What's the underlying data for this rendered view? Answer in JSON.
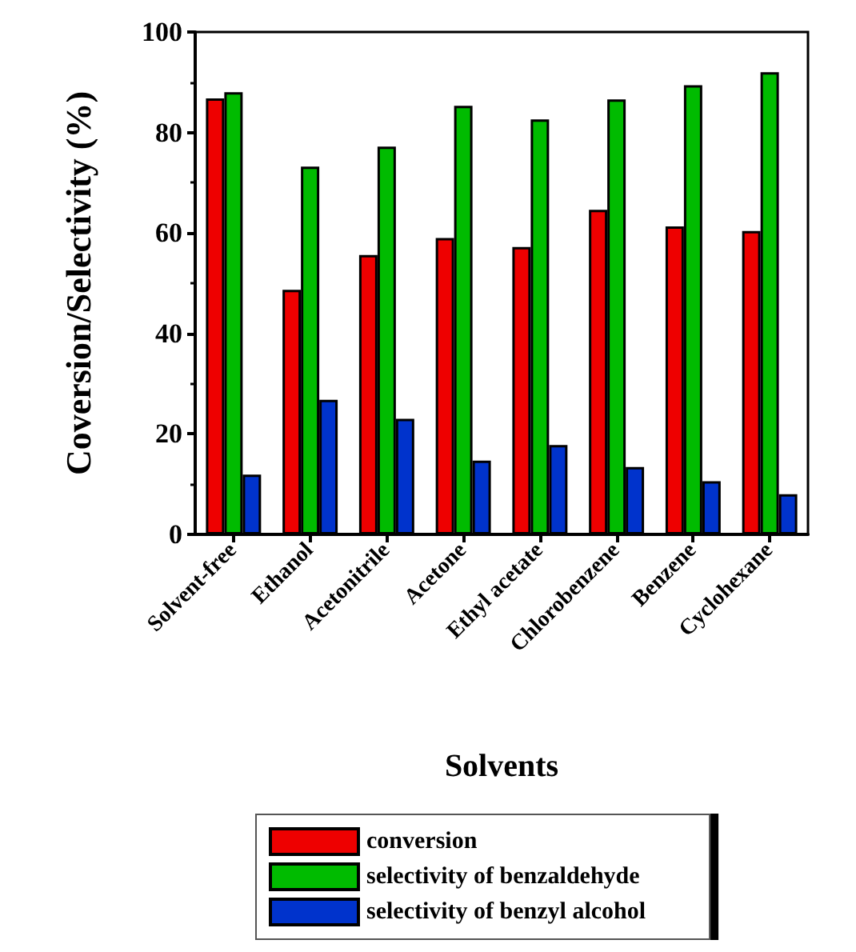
{
  "chart_data": {
    "type": "bar",
    "xlabel": "Solvents",
    "ylabel": "Coversion/Selectivity (%)",
    "categories": [
      "Solvent-free",
      "Ethanol",
      "Acetonitrile",
      "Acetone",
      "Ethyl acetate",
      "Chlorobenzene",
      "Benzene",
      "Cyclohexane"
    ],
    "series": [
      {
        "name": "conversion",
        "color": "#ee0000",
        "values": [
          86.8,
          48.7,
          55.6,
          59,
          57.2,
          64.6,
          61.3,
          60.4
        ]
      },
      {
        "name": "selectivity of benzaldehyde",
        "color": "#00bb00",
        "values": [
          88,
          73.2,
          77.2,
          85.3,
          82.6,
          86.6,
          89.4,
          92
        ]
      },
      {
        "name": "selectivity of benzyl alcohol",
        "color": "#0033cc",
        "values": [
          11.9,
          26.8,
          23,
          14.7,
          17.8,
          13.4,
          10.6,
          8
        ]
      }
    ],
    "ylim": [
      0,
      100
    ],
    "yticks": [
      0,
      20,
      40,
      60,
      80,
      100
    ],
    "grid": false,
    "legend": "bottom"
  }
}
